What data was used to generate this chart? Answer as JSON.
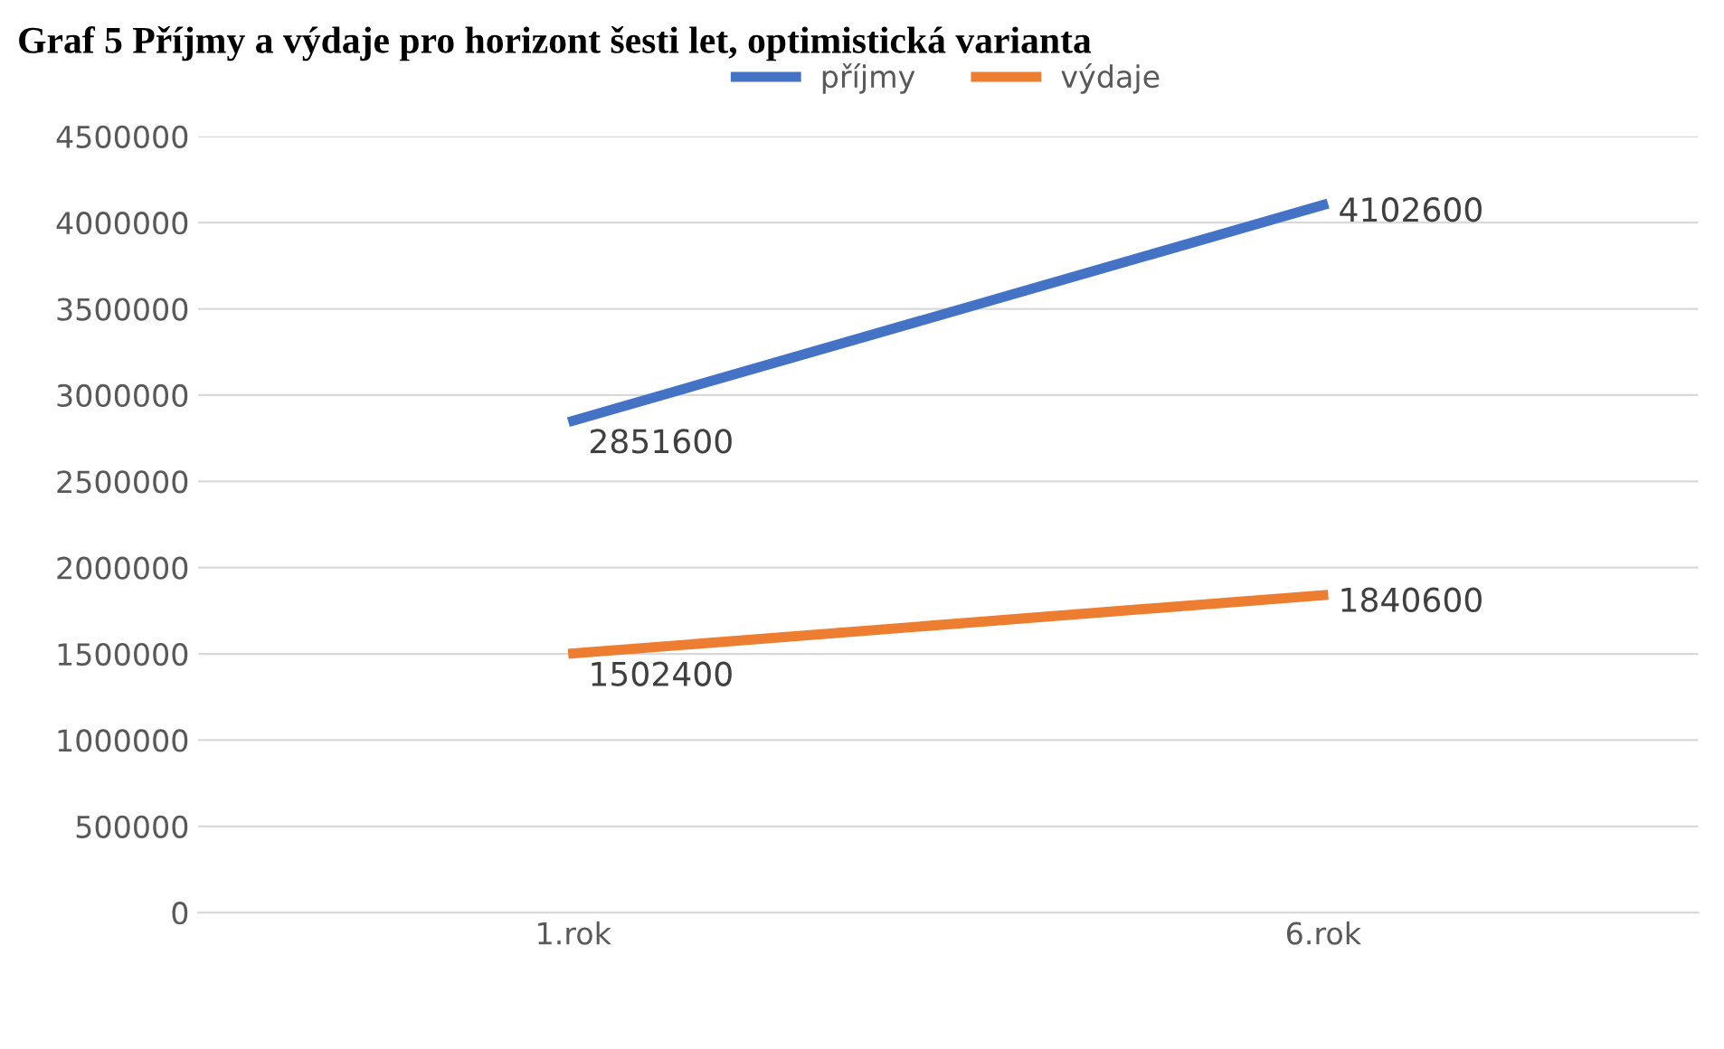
{
  "chart_data": {
    "type": "line",
    "title": "Graf 5 Příjmy a výdaje pro horizont šesti let, optimistická varianta",
    "categories": [
      "1.rok",
      "6.rok"
    ],
    "series": [
      {
        "name": "příjmy",
        "color": "#4472c4",
        "values": [
          2851600,
          4102600
        ]
      },
      {
        "name": "výdaje",
        "color": "#ed7d31",
        "values": [
          1502400,
          1840600
        ]
      }
    ],
    "ylim": [
      0,
      4500000
    ],
    "yticks": [
      0,
      500000,
      1000000,
      1500000,
      2000000,
      2500000,
      3000000,
      3500000,
      4000000,
      4500000
    ],
    "grid": "y",
    "legend": "top",
    "data_labels": true,
    "marker": "none",
    "line_style": "solid"
  }
}
